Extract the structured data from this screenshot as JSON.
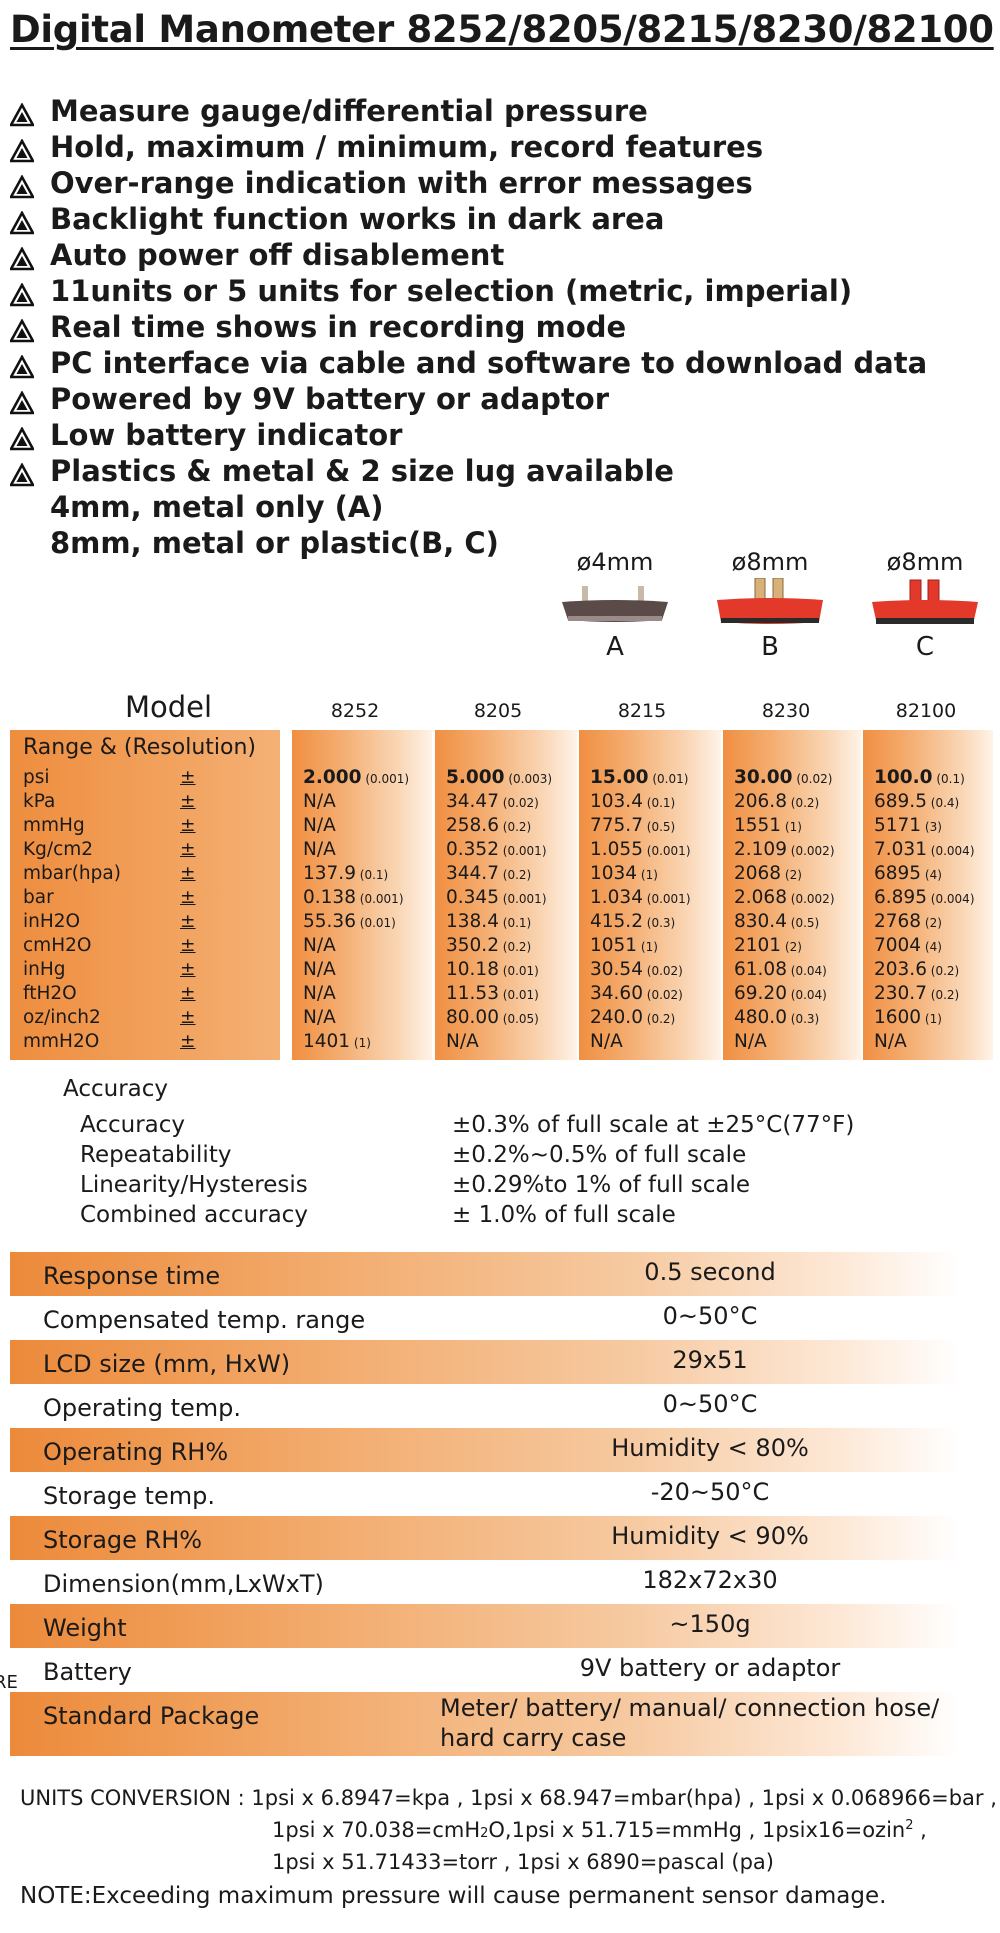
{
  "title": "Digital Manometer 8252/8205/8215/8230/82100",
  "features": [
    "Measure gauge/differential pressure",
    "Hold, maximum / minimum, record features",
    "Over-range indication with error messages",
    "Backlight function works in dark area",
    "Auto power off disablement",
    "11units or 5 units for selection (metric, imperial)",
    "Real time shows in recording mode",
    "PC interface via cable and software to download data",
    "Powered by 9V battery or adaptor",
    "Low battery indicator",
    "Plastics & metal & 2 size lug available"
  ],
  "feature_continuation": [
    "4mm, metal only (A)",
    "8mm, metal or plastic(B, C)"
  ],
  "lugs": [
    {
      "size": "ø4mm",
      "letter": "A",
      "color": "#5a4a48"
    },
    {
      "size": "ø8mm",
      "letter": "B",
      "color": "#e2392a"
    },
    {
      "size": "ø8mm",
      "letter": "C",
      "color": "#e2392a"
    }
  ],
  "model_label": "Model",
  "models": [
    "8252",
    "8205",
    "8215",
    "8230",
    "82100"
  ],
  "range_title": "Range & (Resolution)",
  "pm_symbol": "±",
  "units": [
    "psi",
    "kPa",
    "mmHg",
    "Kg/cm2",
    "mbar(hpa)",
    "bar",
    "inH2O",
    "cmH2O",
    "inHg",
    "ftH2O",
    "oz/inch2",
    "mmH2O"
  ],
  "ranges": [
    [
      [
        "2.000",
        "(0.001)"
      ],
      [
        "N/A",
        ""
      ],
      [
        "N/A",
        ""
      ],
      [
        "N/A",
        ""
      ],
      [
        "137.9",
        "(0.1)"
      ],
      [
        "0.138",
        "(0.001)"
      ],
      [
        "55.36",
        "(0.01)"
      ],
      [
        "N/A",
        ""
      ],
      [
        "N/A",
        ""
      ],
      [
        "N/A",
        ""
      ],
      [
        "N/A",
        ""
      ],
      [
        "1401",
        "(1)"
      ]
    ],
    [
      [
        "5.000",
        "(0.003)"
      ],
      [
        "34.47",
        "(0.02)"
      ],
      [
        "258.6",
        "(0.2)"
      ],
      [
        "0.352",
        "(0.001)"
      ],
      [
        "344.7",
        "(0.2)"
      ],
      [
        "0.345",
        "(0.001)"
      ],
      [
        "138.4",
        "(0.1)"
      ],
      [
        "350.2",
        "(0.2)"
      ],
      [
        "10.18",
        "(0.01)"
      ],
      [
        "11.53",
        "(0.01)"
      ],
      [
        "80.00",
        "(0.05)"
      ],
      [
        "N/A",
        ""
      ]
    ],
    [
      [
        "15.00",
        "(0.01)"
      ],
      [
        "103.4",
        "(0.1)"
      ],
      [
        "775.7",
        "(0.5)"
      ],
      [
        "1.055",
        "(0.001)"
      ],
      [
        "1034",
        "(1)"
      ],
      [
        "1.034",
        "(0.001)"
      ],
      [
        "415.2",
        "(0.3)"
      ],
      [
        "1051",
        "(1)"
      ],
      [
        "30.54",
        "(0.02)"
      ],
      [
        "34.60",
        "(0.02)"
      ],
      [
        "240.0",
        "(0.2)"
      ],
      [
        "N/A",
        ""
      ]
    ],
    [
      [
        "30.00",
        "(0.02)"
      ],
      [
        "206.8",
        "(0.2)"
      ],
      [
        "1551",
        "(1)"
      ],
      [
        "2.109",
        "(0.002)"
      ],
      [
        "2068",
        "(2)"
      ],
      [
        "2.068",
        "(0.002)"
      ],
      [
        "830.4",
        "(0.5)"
      ],
      [
        "2101",
        "(2)"
      ],
      [
        "61.08",
        "(0.04)"
      ],
      [
        "69.20",
        "(0.04)"
      ],
      [
        "480.0",
        "(0.3)"
      ],
      [
        "N/A",
        ""
      ]
    ],
    [
      [
        "100.0",
        "(0.1)"
      ],
      [
        "689.5",
        "(0.4)"
      ],
      [
        "5171",
        "(3)"
      ],
      [
        "7.031",
        "(0.004)"
      ],
      [
        "6895",
        "(4)"
      ],
      [
        "6.895",
        "(0.004)"
      ],
      [
        "2768",
        "(2)"
      ],
      [
        "7004",
        "(4)"
      ],
      [
        "203.6",
        "(0.2)"
      ],
      [
        "230.7",
        "(0.2)"
      ],
      [
        "1600",
        "(1)"
      ],
      [
        "N/A",
        ""
      ]
    ]
  ],
  "accuracy_header": "Accuracy",
  "accuracy": [
    {
      "label": "Accuracy",
      "value": "±0.3% of full scale at ±25°C(77°F)"
    },
    {
      "label": "Repeatability",
      "value": "±0.2%~0.5% of full scale"
    },
    {
      "label": "Linearity/Hysteresis",
      "value": "±0.29%to 1% of full scale"
    },
    {
      "label": "Combined accuracy",
      "value": "± 1.0% of full scale"
    }
  ],
  "specs": [
    {
      "label": "Response time",
      "value": "0.5 second",
      "shaded": true
    },
    {
      "label": "Compensated temp. range",
      "value": "0~50°C",
      "shaded": false
    },
    {
      "label": "LCD size (mm, HxW)",
      "value": "29x51",
      "shaded": true
    },
    {
      "label": "Operating temp.",
      "value": "0~50°C",
      "shaded": false
    },
    {
      "label": "Operating RH%",
      "value": "Humidity < 80%",
      "shaded": true
    },
    {
      "label": "Storage temp.",
      "value": "-20~50°C",
      "shaded": false
    },
    {
      "label": "Storage RH%",
      "value": "Humidity < 90%",
      "shaded": true
    },
    {
      "label": "Dimension(mm,LxWxT)",
      "value": "182x72x30",
      "shaded": false
    },
    {
      "label": "Weight",
      "value": "~150g",
      "shaded": true
    },
    {
      "label": "Battery",
      "value": "9V battery or adaptor",
      "shaded": false
    },
    {
      "label": "Standard Package",
      "value": "Meter/ battery/ manual/ connection hose/",
      "value2": "hard carry case",
      "shaded": true
    }
  ],
  "conversion": {
    "line1": "UNITS CONVERSION : 1psi x 6.8947=kpa , 1psi x 68.947=mbar(hpa) , 1psi x 0.068966=bar ,",
    "line2a": "1psi x 70.038=cmH",
    "line2b": "2",
    "line2c": "O,1psi x 51.715=mmHg ,  1psix16=ozin",
    "line2d": "2",
    "line2e": " ,",
    "line3": "1psi x 51.71433=torr ,  1psi x 6890=pascal (pa)"
  },
  "note": "NOTE:Exceeding maximum pressure will cause permanent sensor damage.",
  "edge_fragment": "RE",
  "colors": {
    "orange": "#ec8a3a",
    "lug_red": "#e2392a",
    "lug_dark": "#5a4a48"
  }
}
